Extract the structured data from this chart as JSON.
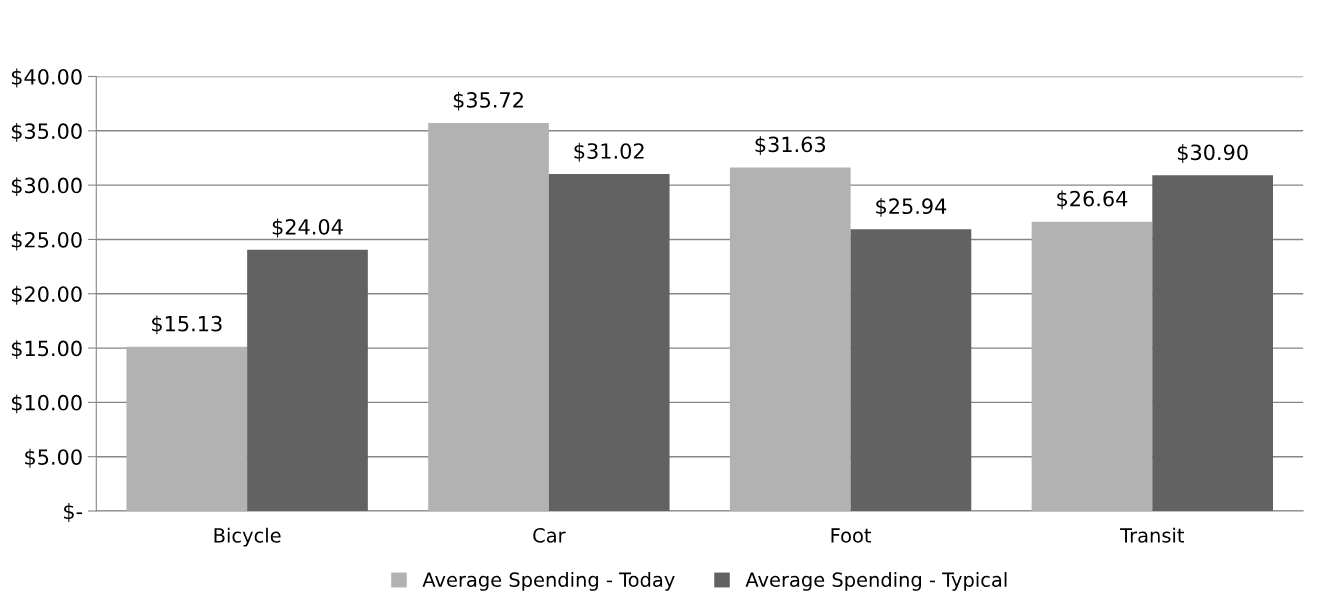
{
  "chart_data": {
    "type": "bar",
    "categories": [
      "Bicycle",
      "Car",
      "Foot",
      "Transit"
    ],
    "series": [
      {
        "name": "Average Spending - Today",
        "color": "#b2b2b2",
        "values": [
          15.13,
          35.72,
          31.63,
          26.64
        ]
      },
      {
        "name": "Average Spending - Typical",
        "color": "#626262",
        "values": [
          24.04,
          31.02,
          25.94,
          30.9
        ]
      }
    ],
    "value_labels": [
      [
        "$15.13",
        "$35.72",
        "$31.63",
        "$26.64"
      ],
      [
        "$24.04",
        "$31.02",
        "$25.94",
        "$30.90"
      ]
    ],
    "ylim": [
      0,
      40
    ],
    "yticks": [
      {
        "value": 0,
        "label": "$-"
      },
      {
        "value": 5,
        "label": "$5.00"
      },
      {
        "value": 10,
        "label": "$10.00"
      },
      {
        "value": 15,
        "label": "$15.00"
      },
      {
        "value": 20,
        "label": "$20.00"
      },
      {
        "value": 25,
        "label": "$25.00"
      },
      {
        "value": 30,
        "label": "$30.00"
      },
      {
        "value": 35,
        "label": "$35.00"
      },
      {
        "value": 40,
        "label": "$40.00"
      }
    ],
    "grid": "y",
    "legend": "bottom"
  }
}
